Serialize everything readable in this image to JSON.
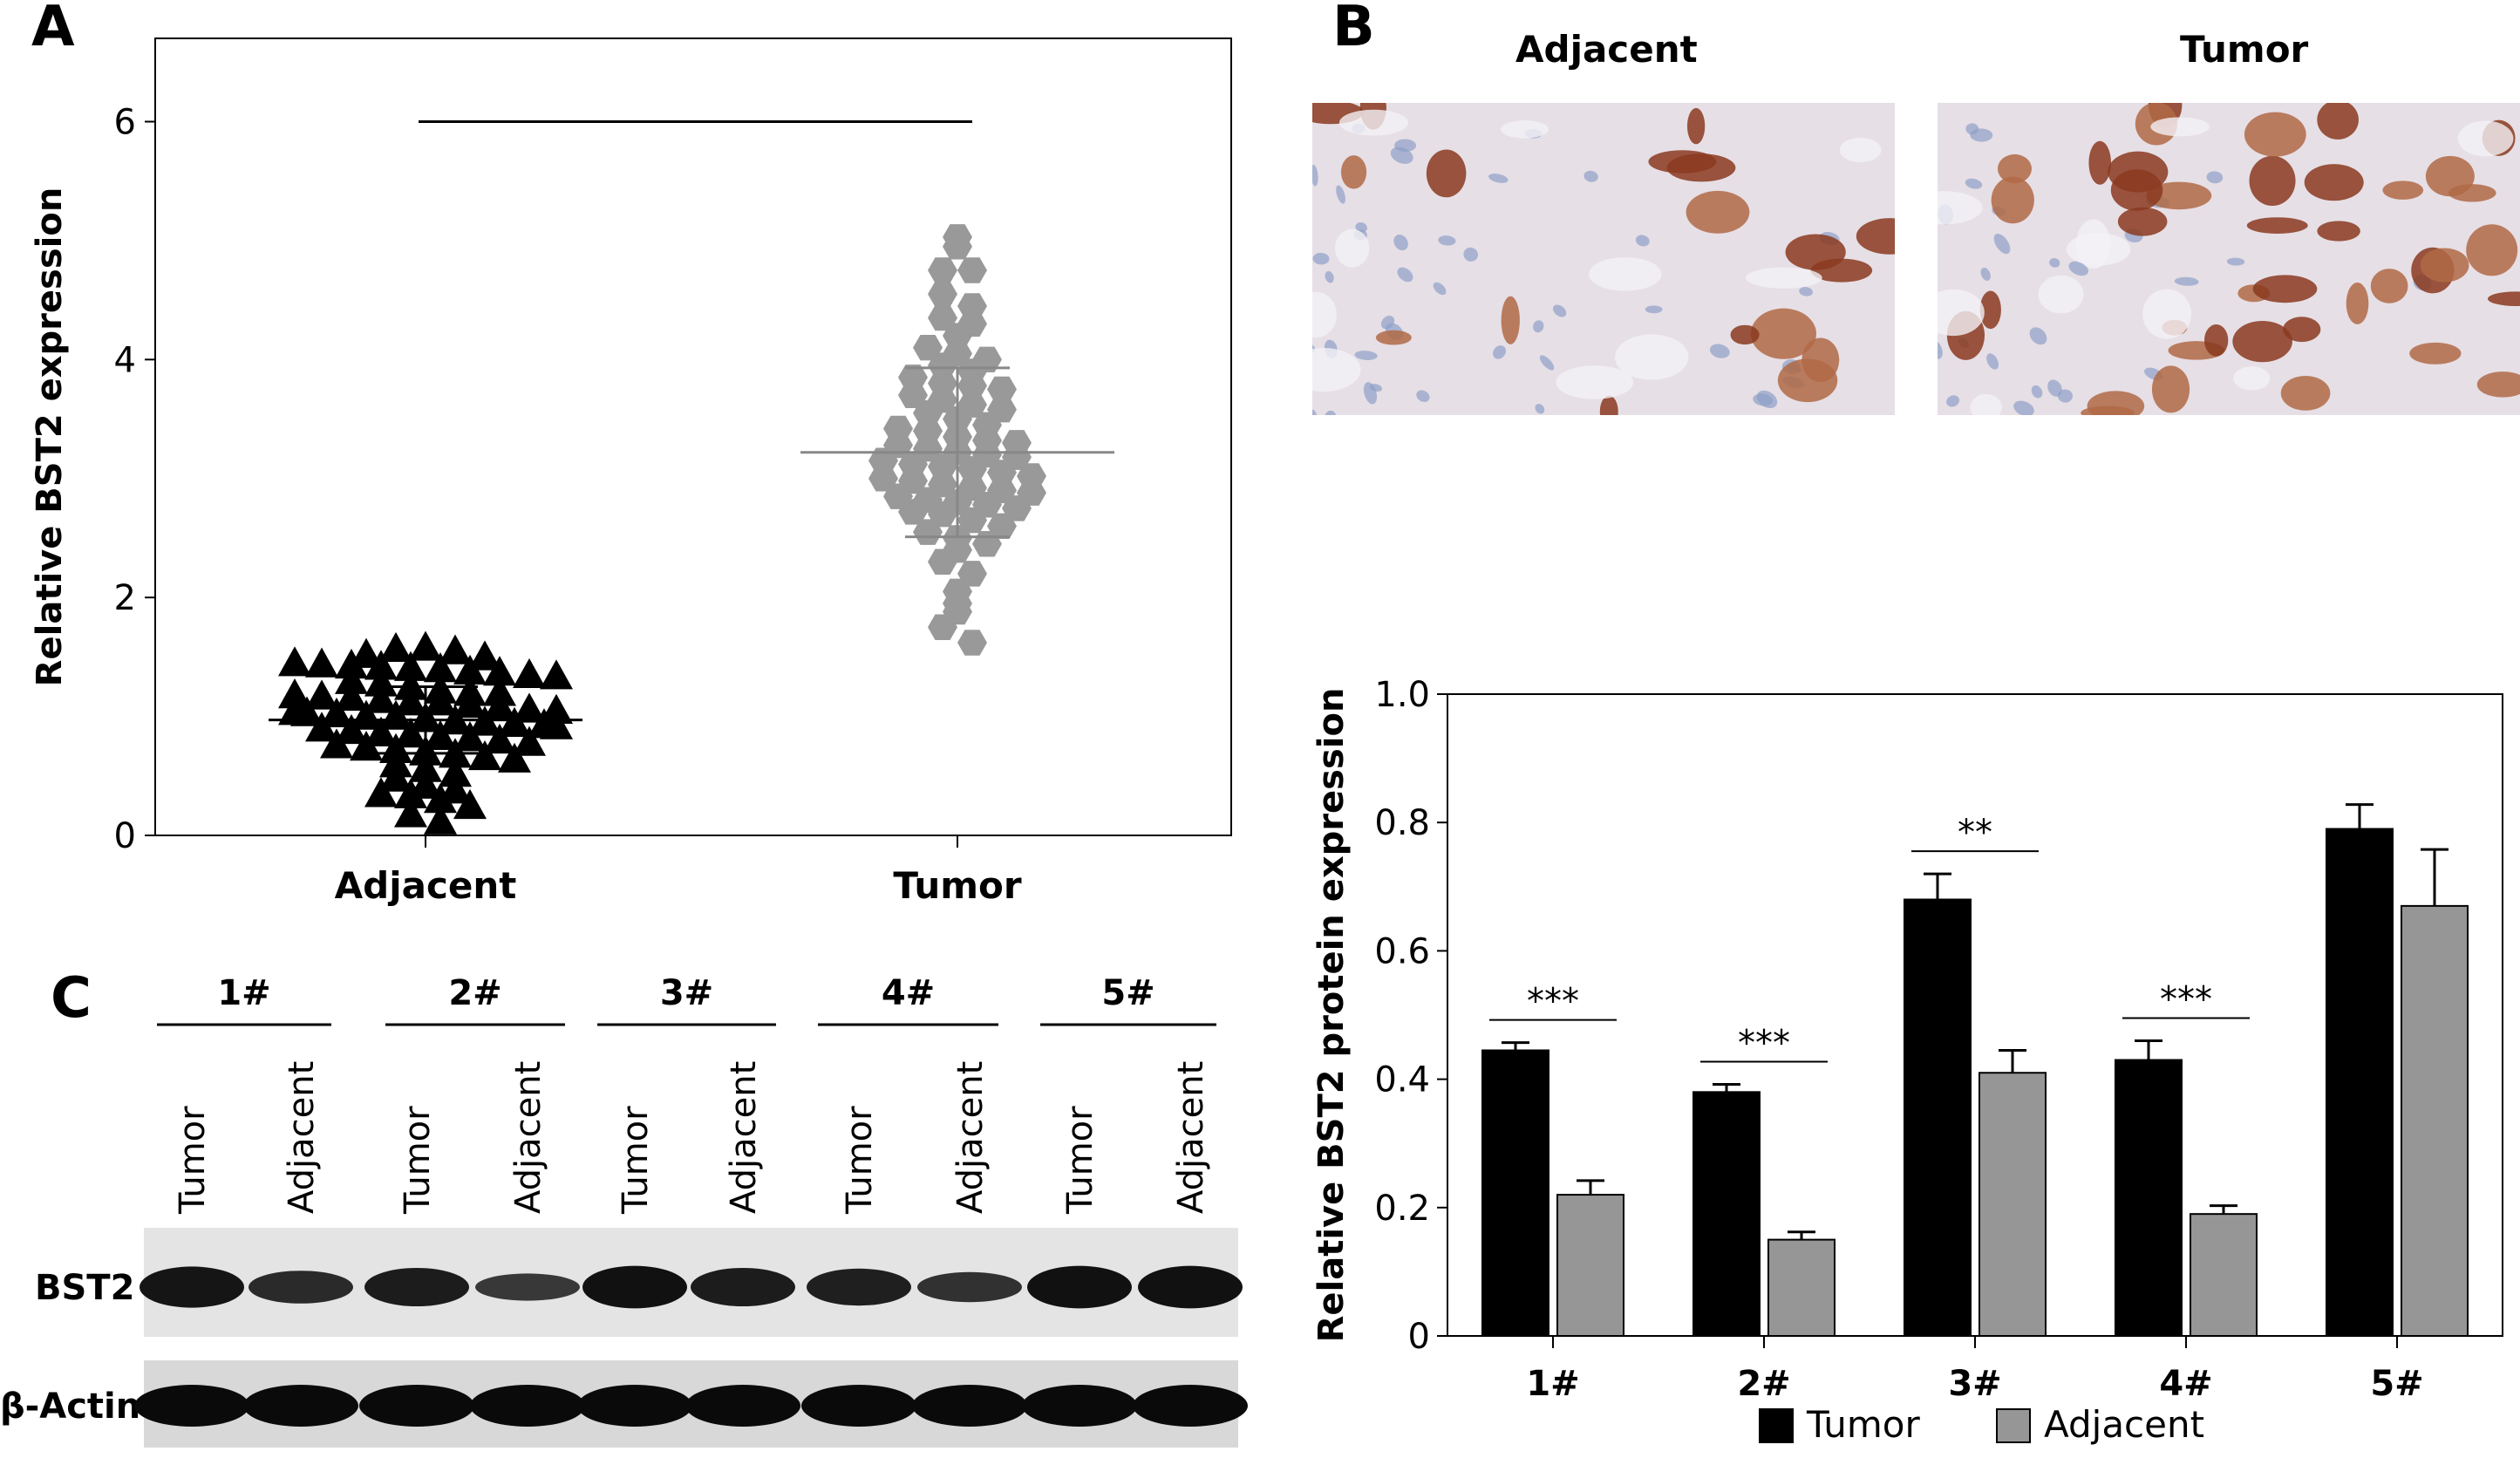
{
  "panels": {
    "a": {
      "letter": "A"
    },
    "b": {
      "letter": "B",
      "headers": [
        "Adjacent",
        "Tumor"
      ]
    },
    "c": {
      "letter": "C",
      "groups": [
        "1#",
        "2#",
        "3#",
        "4#",
        "5#"
      ],
      "lane_labels": [
        "Tumor",
        "Adjacent"
      ],
      "rows": [
        "BST2",
        "β-Actin"
      ],
      "band_intensity": {
        "BST2": [
          0.85,
          0.55,
          0.75,
          0.35,
          0.9,
          0.75,
          0.7,
          0.45,
          0.9,
          0.9
        ],
        "β-Actin": [
          1,
          1,
          1,
          1,
          1,
          1,
          1,
          1,
          1,
          1
        ]
      }
    }
  },
  "colors": {
    "tumor": "#000000",
    "adjacent": "#969696",
    "scatter_grey": "#999999",
    "error_grey": "#888888"
  },
  "chart_data": [
    {
      "type": "scatter",
      "ylabel": "Relative BST2 expression",
      "categories": [
        "Adjacent",
        "Tumor"
      ],
      "ylim": [
        0,
        6.7
      ],
      "yticks": [
        0,
        2,
        4,
        6
      ],
      "significance_bar_y": 6.0,
      "series": [
        {
          "category": "Adjacent",
          "marker": "triangle",
          "mean": 0.97,
          "sd": 0.28,
          "values": [
            1.52,
            1.57,
            1.58,
            1.55,
            1.5,
            1.45,
            1.44,
            1.43,
            1.42,
            1.41,
            1.4,
            1.38,
            1.37,
            1.35,
            1.34,
            1.3,
            1.28,
            1.25,
            1.22,
            1.2,
            1.2,
            1.18,
            1.17,
            1.16,
            1.14,
            1.12,
            1.12,
            1.1,
            1.08,
            1.06,
            1.05,
            1.04,
            1.03,
            1.02,
            1.0,
            1.0,
            0.98,
            0.96,
            0.95,
            0.94,
            0.93,
            0.92,
            0.9,
            0.88,
            0.86,
            0.85,
            0.83,
            0.82,
            0.8,
            0.78,
            0.76,
            0.74,
            0.72,
            0.7,
            0.68,
            0.66,
            0.64,
            0.6,
            0.56,
            0.52,
            0.48,
            0.42,
            0.38,
            0.35,
            0.34,
            0.3,
            0.25,
            0.18,
            0.12
          ]
        },
        {
          "category": "Tumor",
          "marker": "hexagon",
          "mean": 3.22,
          "sd": 0.71,
          "values": [
            5.03,
            4.95,
            4.75,
            4.75,
            4.55,
            4.45,
            4.35,
            4.3,
            4.2,
            4.1,
            4.05,
            4.0,
            3.95,
            3.9,
            3.85,
            3.8,
            3.78,
            3.75,
            3.7,
            3.66,
            3.62,
            3.58,
            3.55,
            3.5,
            3.45,
            3.42,
            3.4,
            3.35,
            3.32,
            3.3,
            3.28,
            3.25,
            3.22,
            3.2,
            3.18,
            3.15,
            3.12,
            3.1,
            3.08,
            3.05,
            3.02,
            3.0,
            2.98,
            2.95,
            2.92,
            2.9,
            2.88,
            2.85,
            2.82,
            2.8,
            2.78,
            2.75,
            2.72,
            2.7,
            2.65,
            2.6,
            2.55,
            2.5,
            2.45,
            2.4,
            2.3,
            2.2,
            2.05,
            1.95,
            1.88,
            1.75,
            1.62
          ]
        }
      ]
    },
    {
      "type": "bar",
      "ylabel": "Relative BST2 protein expression",
      "categories": [
        "1#",
        "2#",
        "3#",
        "4#",
        "5#"
      ],
      "ylim": [
        0,
        1.0
      ],
      "yticks": [
        "0",
        "0.2",
        "0.4",
        "0.6",
        "0.8",
        "1.0"
      ],
      "series": [
        {
          "name": "Tumor",
          "values": [
            0.445,
            0.38,
            0.68,
            0.43,
            0.79
          ],
          "errors": [
            0.012,
            0.012,
            0.04,
            0.03,
            0.038
          ]
        },
        {
          "name": "Adjacent",
          "values": [
            0.22,
            0.15,
            0.41,
            0.19,
            0.67
          ],
          "errors": [
            0.022,
            0.012,
            0.035,
            0.013,
            0.088
          ]
        }
      ],
      "significance": [
        "***",
        "***",
        "**",
        "***",
        ""
      ],
      "legend": {
        "position": "bottom",
        "labels": [
          "Tumor",
          "Adjacent"
        ]
      }
    }
  ]
}
